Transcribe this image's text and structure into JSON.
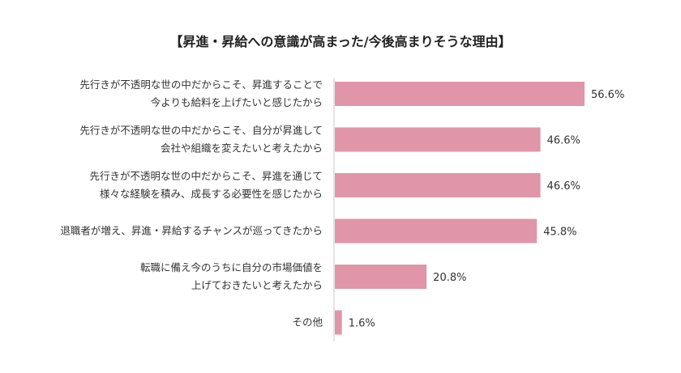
{
  "chart_data": {
    "type": "bar",
    "orientation": "horizontal",
    "title": "【昇進・昇給への意識が高まった/今後高まりそうな理由】",
    "categories": [
      [
        "先行きが不透明な世の中だからこそ、昇進することで",
        "今よりも給料を上げたいと感じたから"
      ],
      [
        "先行きが不透明な世の中だからこそ、自分が昇進して",
        "会社や組織を変えたいと考えたから"
      ],
      [
        "先行きが不透明な世の中だからこそ、昇進を通じて",
        "様々な経験を積み、成長する必要性を感じたから"
      ],
      [
        "退職者が増え、昇進・昇給するチャンスが巡ってきたから"
      ],
      [
        "転職に備え今のうちに自分の市場価値を",
        "上げておきたいと考えたから"
      ],
      [
        "その他"
      ]
    ],
    "values": [
      56.6,
      46.6,
      46.6,
      45.8,
      20.8,
      1.6
    ],
    "value_labels": [
      "56.6%",
      "46.6%",
      "46.6%",
      "45.8%",
      "20.8%",
      "1.6%"
    ],
    "unit": "%",
    "xlim": [
      0,
      56.6
    ],
    "grid": false,
    "bar_color": "#e096a8"
  }
}
